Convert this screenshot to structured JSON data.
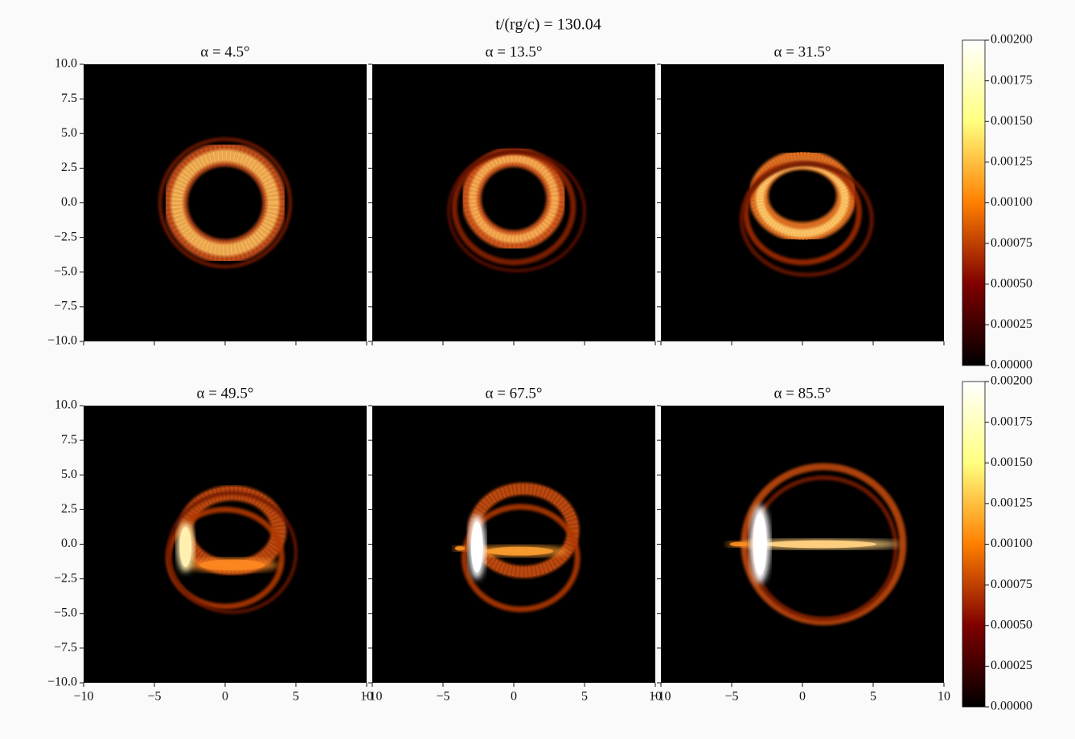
{
  "chart_data": {
    "type": "image",
    "title": "t/(rg/c) = 130.04",
    "panels": [
      {
        "title": "α = 4.5°"
      },
      {
        "title": "α = 13.5°"
      },
      {
        "title": "α = 31.5°"
      },
      {
        "title": "α = 49.5°"
      },
      {
        "title": "α = 67.5°"
      },
      {
        "title": "α = 85.5°"
      }
    ],
    "xlim": [
      -10,
      10
    ],
    "xticks": [
      {
        "value": -10,
        "label": "−10"
      },
      {
        "value": -5,
        "label": "−5"
      },
      0,
      5,
      10
    ],
    "ylim": [
      -10,
      10
    ],
    "yticks": [
      {
        "value": -10,
        "label": "−10.0"
      },
      {
        "value": -7.5,
        "label": "−7.5"
      },
      {
        "value": -5,
        "label": "−5.0"
      },
      {
        "value": -2.5,
        "label": "−2.5"
      },
      {
        "value": 0,
        "label": "0.0"
      },
      2.5,
      {
        "value": 5,
        "label": "5.0"
      },
      7.5,
      {
        "value": 10,
        "label": "10.0"
      }
    ],
    "colorbar": {
      "colormap": "afmhot",
      "lim": [
        0,
        0.002
      ],
      "ticks": [
        {
          "value": 0,
          "label": "0.00000"
        },
        {
          "value": 0.00025,
          "label": "0.00025"
        },
        {
          "value": 0.0005,
          "label": "0.00050"
        },
        {
          "value": 0.00075,
          "label": "0.00075"
        },
        {
          "value": 0.001,
          "label": "0.00100"
        },
        {
          "value": 0.00125,
          "label": "0.00125"
        },
        {
          "value": 0.0015,
          "label": "0.00150"
        },
        {
          "value": 0.00175,
          "label": "0.00175"
        },
        {
          "value": 0.002,
          "label": "0.00200"
        }
      ]
    }
  }
}
